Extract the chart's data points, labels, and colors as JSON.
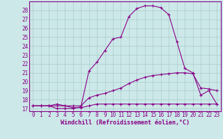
{
  "xlabel": "Windchill (Refroidissement éolien,°C)",
  "bg_color": "#cce8e8",
  "line_color": "#880088",
  "grid_color": "#aacccc",
  "xlim": [
    -0.5,
    23.5
  ],
  "ylim": [
    16.7,
    29.0
  ],
  "yticks": [
    17,
    18,
    19,
    20,
    21,
    22,
    23,
    24,
    25,
    26,
    27,
    28
  ],
  "xticks": [
    0,
    1,
    2,
    3,
    4,
    5,
    6,
    7,
    8,
    9,
    10,
    11,
    12,
    13,
    14,
    15,
    16,
    17,
    18,
    19,
    20,
    21,
    22,
    23
  ],
  "line1_x": [
    0,
    1,
    2,
    3,
    4,
    5,
    6,
    7,
    8,
    9,
    10,
    11,
    12,
    13,
    14,
    15,
    16,
    17,
    18,
    19,
    20,
    21,
    22,
    23
  ],
  "line1_y": [
    17.3,
    17.3,
    17.3,
    17.5,
    17.3,
    17.1,
    17.1,
    17.3,
    17.5,
    17.5,
    17.5,
    17.5,
    17.5,
    17.5,
    17.5,
    17.5,
    17.5,
    17.5,
    17.5,
    17.5,
    17.5,
    17.5,
    17.5,
    17.5
  ],
  "line2_x": [
    0,
    1,
    2,
    3,
    4,
    5,
    6,
    7,
    8,
    9,
    10,
    11,
    12,
    13,
    14,
    15,
    16,
    17,
    18,
    19,
    20,
    21,
    22,
    23
  ],
  "line2_y": [
    17.3,
    17.3,
    17.3,
    17.3,
    17.3,
    17.3,
    17.3,
    18.2,
    18.5,
    18.7,
    19.0,
    19.3,
    19.8,
    20.2,
    20.5,
    20.7,
    20.8,
    20.9,
    21.0,
    21.0,
    20.9,
    19.3,
    19.2,
    19.0
  ],
  "line3_x": [
    0,
    1,
    2,
    3,
    4,
    5,
    6,
    7,
    8,
    9,
    10,
    11,
    12,
    13,
    14,
    15,
    16,
    17,
    18,
    19,
    20,
    21,
    22,
    23
  ],
  "line3_y": [
    17.3,
    17.3,
    17.3,
    17.0,
    17.0,
    17.0,
    17.2,
    21.2,
    22.2,
    23.5,
    24.8,
    25.0,
    27.3,
    28.2,
    28.5,
    28.5,
    28.3,
    27.5,
    24.5,
    21.5,
    21.0,
    18.5,
    19.0,
    17.5
  ]
}
